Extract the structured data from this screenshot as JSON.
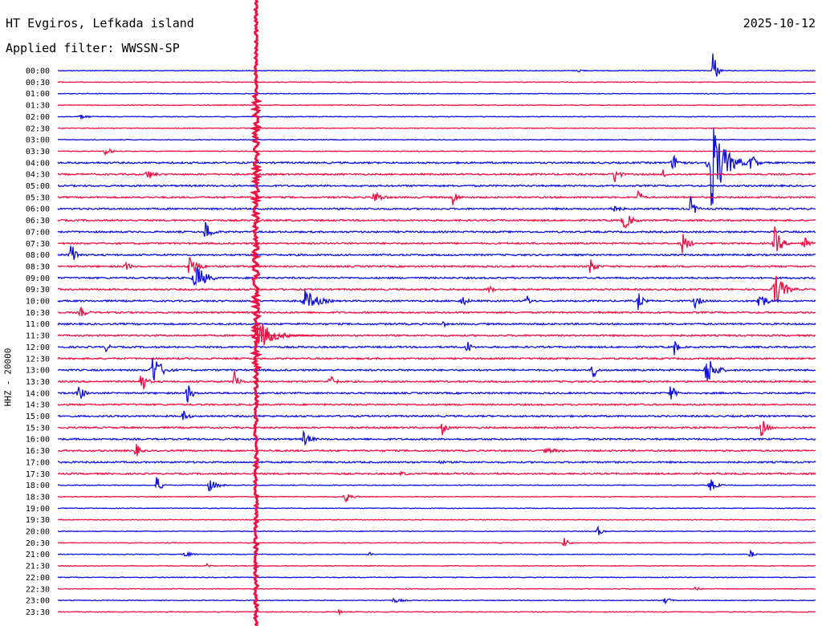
{
  "header": {
    "station": "HT Evgiros, Lefkada island",
    "filter": "Applied filter: WWSSN-SP",
    "date": "2025-10-12"
  },
  "chart_data": {
    "type": "helicorder",
    "channel_label": "HHZ - 20000",
    "row_labels": [
      "00:00",
      "00:30",
      "01:00",
      "01:30",
      "02:00",
      "02:30",
      "03:00",
      "03:30",
      "04:00",
      "04:30",
      "05:00",
      "05:30",
      "06:00",
      "06:30",
      "07:00",
      "07:30",
      "08:00",
      "08:30",
      "09:00",
      "09:30",
      "10:00",
      "10:30",
      "11:00",
      "11:30",
      "12:00",
      "12:30",
      "13:00",
      "13:30",
      "14:00",
      "14:30",
      "15:00",
      "15:30",
      "16:00",
      "16:30",
      "17:00",
      "17:30",
      "18:00",
      "18:30",
      "19:00",
      "19:30",
      "20:00",
      "20:30",
      "21:00",
      "21:30",
      "22:00",
      "22:30",
      "23:00",
      "23:30"
    ],
    "colors": {
      "even_rows": "#1010dd",
      "odd_rows": "#ee1144"
    }
  }
}
